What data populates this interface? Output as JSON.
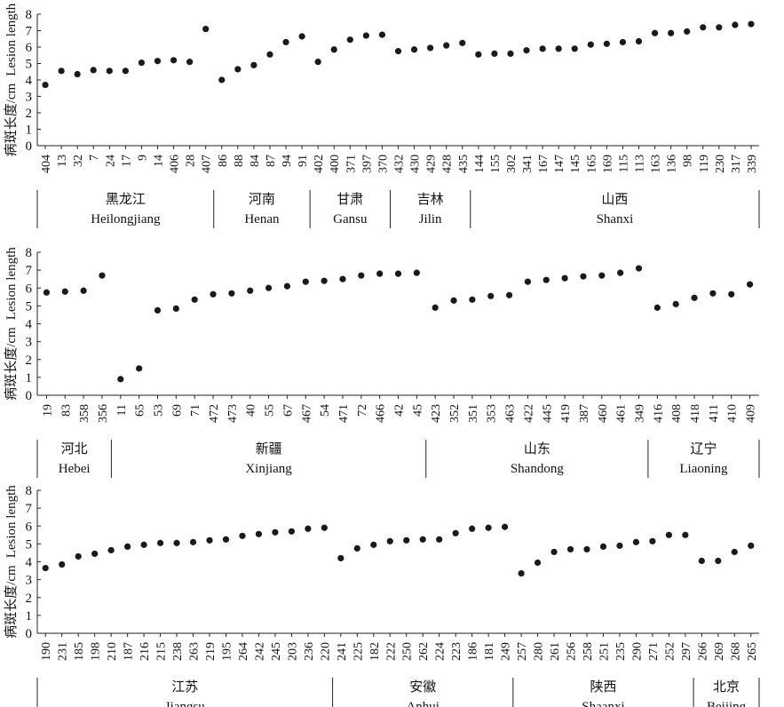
{
  "ylabel_cn": "病斑长度/cm",
  "ylabel_en": "Lesion length",
  "colors": {
    "point": "#1a1a1a",
    "axis": "#222222",
    "background": "#ffffff"
  },
  "chart_data": [
    {
      "type": "scatter",
      "ylim": [
        0,
        8
      ],
      "yticks": [
        0,
        1,
        2,
        3,
        4,
        5,
        6,
        7,
        8
      ],
      "grid": false,
      "groups": [
        {
          "cn": "黑龙江",
          "en": "Heilongjiang",
          "categories": [
            "404",
            "13",
            "32",
            "7",
            "24",
            "17",
            "9",
            "14",
            "406",
            "28",
            "407"
          ],
          "values": [
            3.7,
            4.55,
            4.35,
            4.6,
            4.55,
            4.55,
            5.05,
            5.15,
            5.2,
            5.1,
            7.1
          ]
        },
        {
          "cn": "河南",
          "en": "Henan",
          "categories": [
            "86",
            "88",
            "84",
            "87",
            "94",
            "91"
          ],
          "values": [
            4.0,
            4.65,
            4.9,
            5.55,
            6.3,
            6.65
          ]
        },
        {
          "cn": "甘肃",
          "en": "Gansu",
          "categories": [
            "402",
            "400",
            "371",
            "397",
            "370"
          ],
          "values": [
            5.1,
            5.85,
            6.45,
            6.7,
            6.75
          ]
        },
        {
          "cn": "吉林",
          "en": "Jilin",
          "categories": [
            "432",
            "430",
            "429",
            "428",
            "435"
          ],
          "values": [
            5.75,
            5.85,
            5.95,
            6.1,
            6.25
          ]
        },
        {
          "cn": "山西",
          "en": "Shanxi",
          "categories": [
            "144",
            "155",
            "302",
            "341",
            "167",
            "147",
            "145",
            "165",
            "169",
            "115",
            "113",
            "163",
            "136",
            "98",
            "119",
            "230",
            "317",
            "339"
          ],
          "values": [
            5.55,
            5.6,
            5.6,
            5.8,
            5.9,
            5.9,
            5.9,
            6.15,
            6.2,
            6.3,
            6.35,
            6.85,
            6.85,
            6.95,
            7.2,
            7.2,
            7.35,
            7.4
          ]
        }
      ]
    },
    {
      "type": "scatter",
      "ylim": [
        0,
        8
      ],
      "yticks": [
        0,
        1,
        2,
        3,
        4,
        5,
        6,
        7,
        8
      ],
      "grid": false,
      "groups": [
        {
          "cn": "河北",
          "en": "Hebei",
          "categories": [
            "19",
            "83",
            "358",
            "356"
          ],
          "values": [
            5.75,
            5.8,
            5.85,
            6.7
          ]
        },
        {
          "cn": "新疆",
          "en": "Xinjiang",
          "categories": [
            "11",
            "65",
            "53",
            "69",
            "71",
            "472",
            "473",
            "40",
            "55",
            "67",
            "467",
            "54",
            "471",
            "72",
            "466",
            "42",
            "45"
          ],
          "values": [
            0.9,
            1.5,
            4.75,
            4.85,
            5.35,
            5.65,
            5.7,
            5.85,
            6.0,
            6.1,
            6.35,
            6.4,
            6.5,
            6.7,
            6.8,
            6.8,
            6.85
          ]
        },
        {
          "cn": "山东",
          "en": "Shandong",
          "categories": [
            "423",
            "352",
            "351",
            "353",
            "463",
            "422",
            "445",
            "419",
            "387",
            "460",
            "461",
            "349"
          ],
          "values": [
            4.9,
            5.3,
            5.35,
            5.55,
            5.6,
            6.35,
            6.45,
            6.55,
            6.65,
            6.7,
            6.85,
            7.1
          ]
        },
        {
          "cn": "辽宁",
          "en": "Liaoning",
          "categories": [
            "416",
            "408",
            "418",
            "411",
            "410",
            "409"
          ],
          "values": [
            4.9,
            5.1,
            5.45,
            5.7,
            5.65,
            6.2
          ]
        }
      ]
    },
    {
      "type": "scatter",
      "ylim": [
        0,
        8
      ],
      "yticks": [
        0,
        1,
        2,
        3,
        4,
        5,
        6,
        7,
        8
      ],
      "grid": false,
      "groups": [
        {
          "cn": "江苏",
          "en": "Jiangsu",
          "categories": [
            "190",
            "231",
            "185",
            "198",
            "210",
            "187",
            "216",
            "215",
            "238",
            "263",
            "219",
            "195",
            "264",
            "242",
            "245",
            "203",
            "236",
            "220"
          ],
          "values": [
            3.65,
            3.85,
            4.3,
            4.45,
            4.65,
            4.85,
            4.95,
            5.05,
            5.05,
            5.1,
            5.2,
            5.25,
            5.45,
            5.55,
            5.65,
            5.7,
            5.85,
            5.9
          ]
        },
        {
          "cn": "安徽",
          "en": "Anhui",
          "categories": [
            "241",
            "225",
            "182",
            "222",
            "250",
            "262",
            "224",
            "223",
            "186",
            "181",
            "249"
          ],
          "values": [
            4.2,
            4.75,
            4.95,
            5.15,
            5.2,
            5.25,
            5.25,
            5.6,
            5.85,
            5.9,
            5.95
          ]
        },
        {
          "cn": "陕西",
          "en": "Shaanxi",
          "categories": [
            "257",
            "280",
            "261",
            "256",
            "258",
            "251",
            "235",
            "290",
            "271",
            "252",
            "297"
          ],
          "values": [
            3.35,
            3.95,
            4.55,
            4.7,
            4.7,
            4.85,
            4.9,
            5.1,
            5.15,
            5.5,
            5.5
          ]
        },
        {
          "cn": "北京",
          "en": "Beijing",
          "categories": [
            "266",
            "269",
            "268",
            "265"
          ],
          "values": [
            4.05,
            4.05,
            4.55,
            4.9
          ]
        }
      ]
    }
  ]
}
